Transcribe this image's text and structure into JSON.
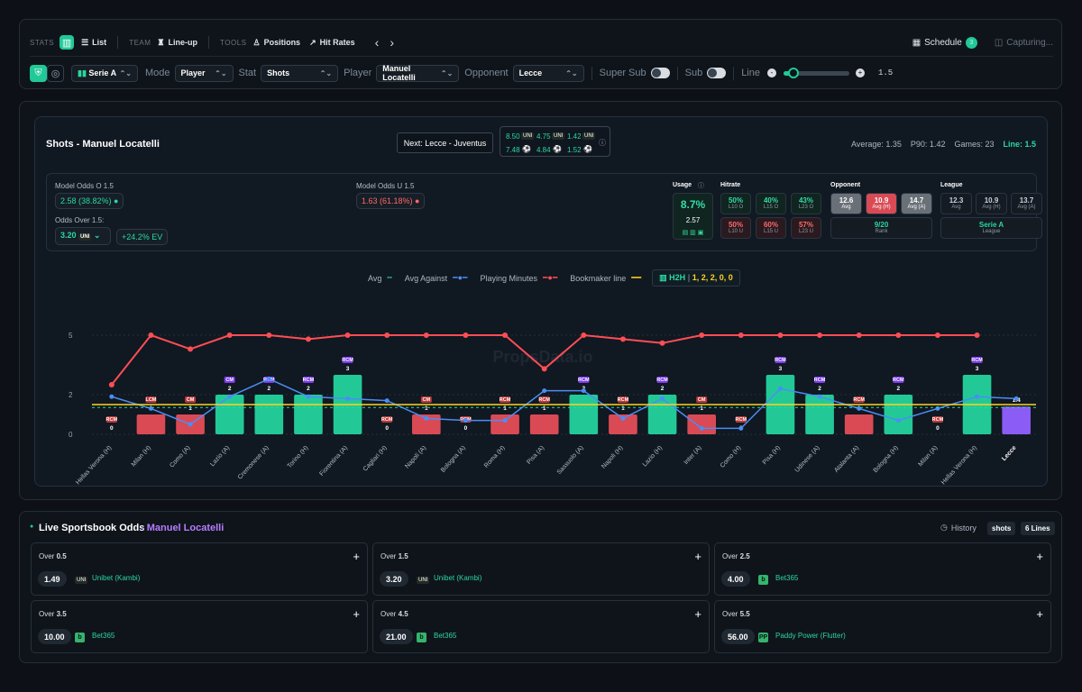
{
  "nav": {
    "stats": "STATS",
    "list": "List",
    "team": "TEAM",
    "lineup": "Line-up",
    "tools": "TOOLS",
    "positions": "Positions",
    "hit_rates": "Hit Rates",
    "schedule": "Schedule",
    "schedule_count": "3",
    "capturing": "Capturing..."
  },
  "filters": {
    "league": "Serie A",
    "mode_label": "Mode",
    "mode": "Player",
    "stat_label": "Stat",
    "stat": "Shots",
    "player_label": "Player",
    "player": "Manuel Locatelli",
    "opponent_label": "Opponent",
    "opponent": "Lecce",
    "super_sub": "Super Sub",
    "sub": "Sub",
    "line_label": "Line",
    "line_value": "1.5",
    "minus": "-",
    "plus": "+"
  },
  "chart_header": {
    "title": "Shots - Manuel Locatelli",
    "next": "Next: Lecce - Juventus",
    "odds": [
      "8.50",
      "4.75",
      "1.42",
      "7.48",
      "4.84",
      "1.52"
    ],
    "average": "Average: 1.35",
    "p90": "P90: 1.42",
    "games": "Games: 23",
    "line": "Line: 1.5"
  },
  "summary": {
    "model_over_label": "Model Odds O 1.5",
    "model_over": "2.58 (38.82%)",
    "model_under_label": "Model Odds U 1.5",
    "model_under": "1.63 (61.18%)",
    "odds_over_label": "Odds Over 1.5:",
    "odds_over": "3.20",
    "ev": "+24.2% EV",
    "usage": "Usage",
    "usage_value": "8.7%",
    "usage_sub": "2.57",
    "hitrate": "Hitrate",
    "hit": [
      "50%",
      "40%",
      "43%",
      "50%",
      "60%",
      "57%"
    ],
    "hit_labels": [
      "L10 O",
      "L15 O",
      "L23 O",
      "L10 U",
      "L15 U",
      "L23 U"
    ],
    "opponent": "Opponent",
    "opponent_values": [
      "12.6",
      "10.9",
      "14.7"
    ],
    "opponent_labels": [
      "Avg",
      "Avg (H)",
      "Avg (A)"
    ],
    "rank": "9/20",
    "rank_label": "Rank",
    "league": "League",
    "league_values": [
      "12.3",
      "10.9",
      "13.7"
    ],
    "league_labels": [
      "Avg",
      "Avg (H)",
      "Avg (A)"
    ],
    "league_name": "Serie A",
    "league_name_label": "League"
  },
  "legend": {
    "avg": "Avg",
    "against": "Avg Against",
    "minutes": "Playing Minutes",
    "bookmaker": "Bookmaker line",
    "h2h": "H2H",
    "h2h_values": "1, 2, 2, 0, 0"
  },
  "watermark": "PropsData.io",
  "chart_data": {
    "type": "bar",
    "title": "Shots - Manuel Locatelli",
    "categories": [
      "Hellas Verona (H)",
      "Milan (H)",
      "Como (A)",
      "Lazio (A)",
      "Cremonese (A)",
      "Torino (H)",
      "Fiorentina (A)",
      "Cagliari (H)",
      "Napoli (A)",
      "Bologna (A)",
      "Roma (H)",
      "Pisa (A)",
      "Sassuolo (A)",
      "Napoli (H)",
      "Lazio (H)",
      "Inter (A)",
      "Como (H)",
      "Pisa (H)",
      "Udinese (A)",
      "Atalanta (A)",
      "Bologna (H)",
      "Milan (A)",
      "Hellas Verona (H)",
      "Lecce"
    ],
    "values": [
      0,
      1,
      1,
      2,
      2,
      2,
      3,
      0,
      1,
      0,
      1,
      1,
      2,
      1,
      2,
      1,
      0,
      3,
      2,
      1,
      2,
      0,
      3,
      1.4
    ],
    "positions": [
      "RCM",
      "LCM",
      "CM",
      "CM",
      "RCM",
      "RCM",
      "RCM",
      "RCM",
      "CM",
      "RCM",
      "RCM",
      "RCM",
      "RCM",
      "RCM",
      "RCM",
      "CM",
      "RCM",
      "RCM",
      "RCM",
      "RCM",
      "RCM",
      "RCM",
      "RCM",
      "RCM"
    ],
    "minutes": [
      2.5,
      5,
      4.3,
      5,
      5,
      4.8,
      5,
      5,
      5,
      5,
      5,
      3.3,
      5,
      4.8,
      4.6,
      5,
      5,
      5,
      5,
      5,
      5,
      5,
      5
    ],
    "avg_against": [
      1.9,
      1.3,
      0.5,
      1.9,
      2.8,
      1.9,
      1.8,
      1.7,
      0.8,
      0.7,
      0.7,
      2.2,
      2.2,
      0.8,
      1.8,
      0.3,
      0.3,
      2.3,
      1.9,
      1.3,
      0.7,
      1.3,
      1.9,
      1.8
    ],
    "ylim": [
      0,
      5
    ],
    "line": 1.5,
    "avg": 1.35,
    "yticks": [
      0,
      2,
      5
    ]
  },
  "live": {
    "title": "Live Sportsbook Odds",
    "player": "- Manuel Locatelli",
    "history": "History",
    "shots": "shots",
    "lines": "6 Lines",
    "items": [
      {
        "over": "Over",
        "line": "0.5",
        "odd": "1.49",
        "book": "Unibet (Kambi)"
      },
      {
        "over": "Over",
        "line": "1.5",
        "odd": "3.20",
        "book": "Unibet (Kambi)"
      },
      {
        "over": "Over",
        "line": "2.5",
        "odd": "4.00",
        "book": "Bet365"
      },
      {
        "over": "Over",
        "line": "3.5",
        "odd": "10.00",
        "book": "Bet365"
      },
      {
        "over": "Over",
        "line": "4.5",
        "odd": "21.00",
        "book": "Bet365"
      },
      {
        "over": "Over",
        "line": "5.5",
        "odd": "56.00",
        "book": "Paddy Power (Flutter)"
      }
    ]
  },
  "icons": {
    "chart": "bar-chart-icon",
    "list": "list-icon",
    "shirt": "shirt-icon",
    "people": "people-icon",
    "trend": "trend-icon",
    "calendar": "calendar-icon",
    "camera": "camera-icon",
    "shield": "shield-icon",
    "globe": "globe-icon"
  },
  "colors": {
    "accent": "#2bd7a1",
    "green_bar": "#22c997",
    "red_bar": "#d94a55",
    "purple_bar": "#8b5cf6",
    "minutes": "#ff4d55",
    "against": "#4b8df5",
    "bookmaker": "#ffd21f"
  }
}
